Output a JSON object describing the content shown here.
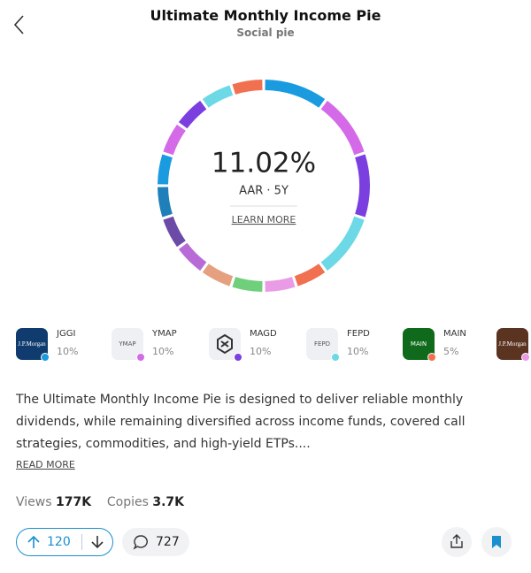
{
  "header": {
    "title": "Ultimate Monthly Income Pie",
    "subtitle": "Social pie"
  },
  "chart_data": {
    "type": "donut",
    "center_value": "11.02%",
    "center_label": "AAR · 5Y",
    "link": "LEARN MORE",
    "values": [
      10,
      10,
      10,
      10,
      5,
      5,
      5,
      5,
      5,
      5,
      5,
      5,
      5,
      5,
      5,
      5
    ],
    "colors": [
      "#1a9be0",
      "#d46ae8",
      "#7b3fe0",
      "#6dd8e6",
      "#f0704f",
      "#e99be6",
      "#6fcf7a",
      "#e5a080",
      "#b86bd6",
      "#6c4aa8",
      "#1f7fb8",
      "#1a9be0",
      "#d46ae8",
      "#7b3fe0",
      "#6dd8e6",
      "#f0704f"
    ]
  },
  "holdings": [
    {
      "ticker": "JGGI",
      "weight": "10%",
      "logo": "J.P.Morgan",
      "color": "#1a9be0"
    },
    {
      "ticker": "YMAP",
      "weight": "10%",
      "logo": "YMAP",
      "color": "#d46ae8"
    },
    {
      "ticker": "MAGD",
      "weight": "10%",
      "color": "#7b3fe0"
    },
    {
      "ticker": "FEPD",
      "weight": "10%",
      "logo": "FEPD",
      "color": "#6dd8e6"
    },
    {
      "ticker": "MAIN",
      "weight": "5%",
      "logo": "MAIN",
      "color": "#f0704f"
    },
    {
      "logo": "J.P.Morgan",
      "color": "#e99be6"
    }
  ],
  "description": "The Ultimate Monthly Income Pie is designed to deliver reliable monthly dividends, while remaining diversified across income funds, covered call strategies, commodities, and high-yield ETPs....",
  "read_more": "READ MORE",
  "stats": {
    "views_label": "Views",
    "views": "177K",
    "copies_label": "Copies",
    "copies": "3.7K"
  },
  "actions": {
    "upvotes": "120",
    "comments": "727"
  }
}
